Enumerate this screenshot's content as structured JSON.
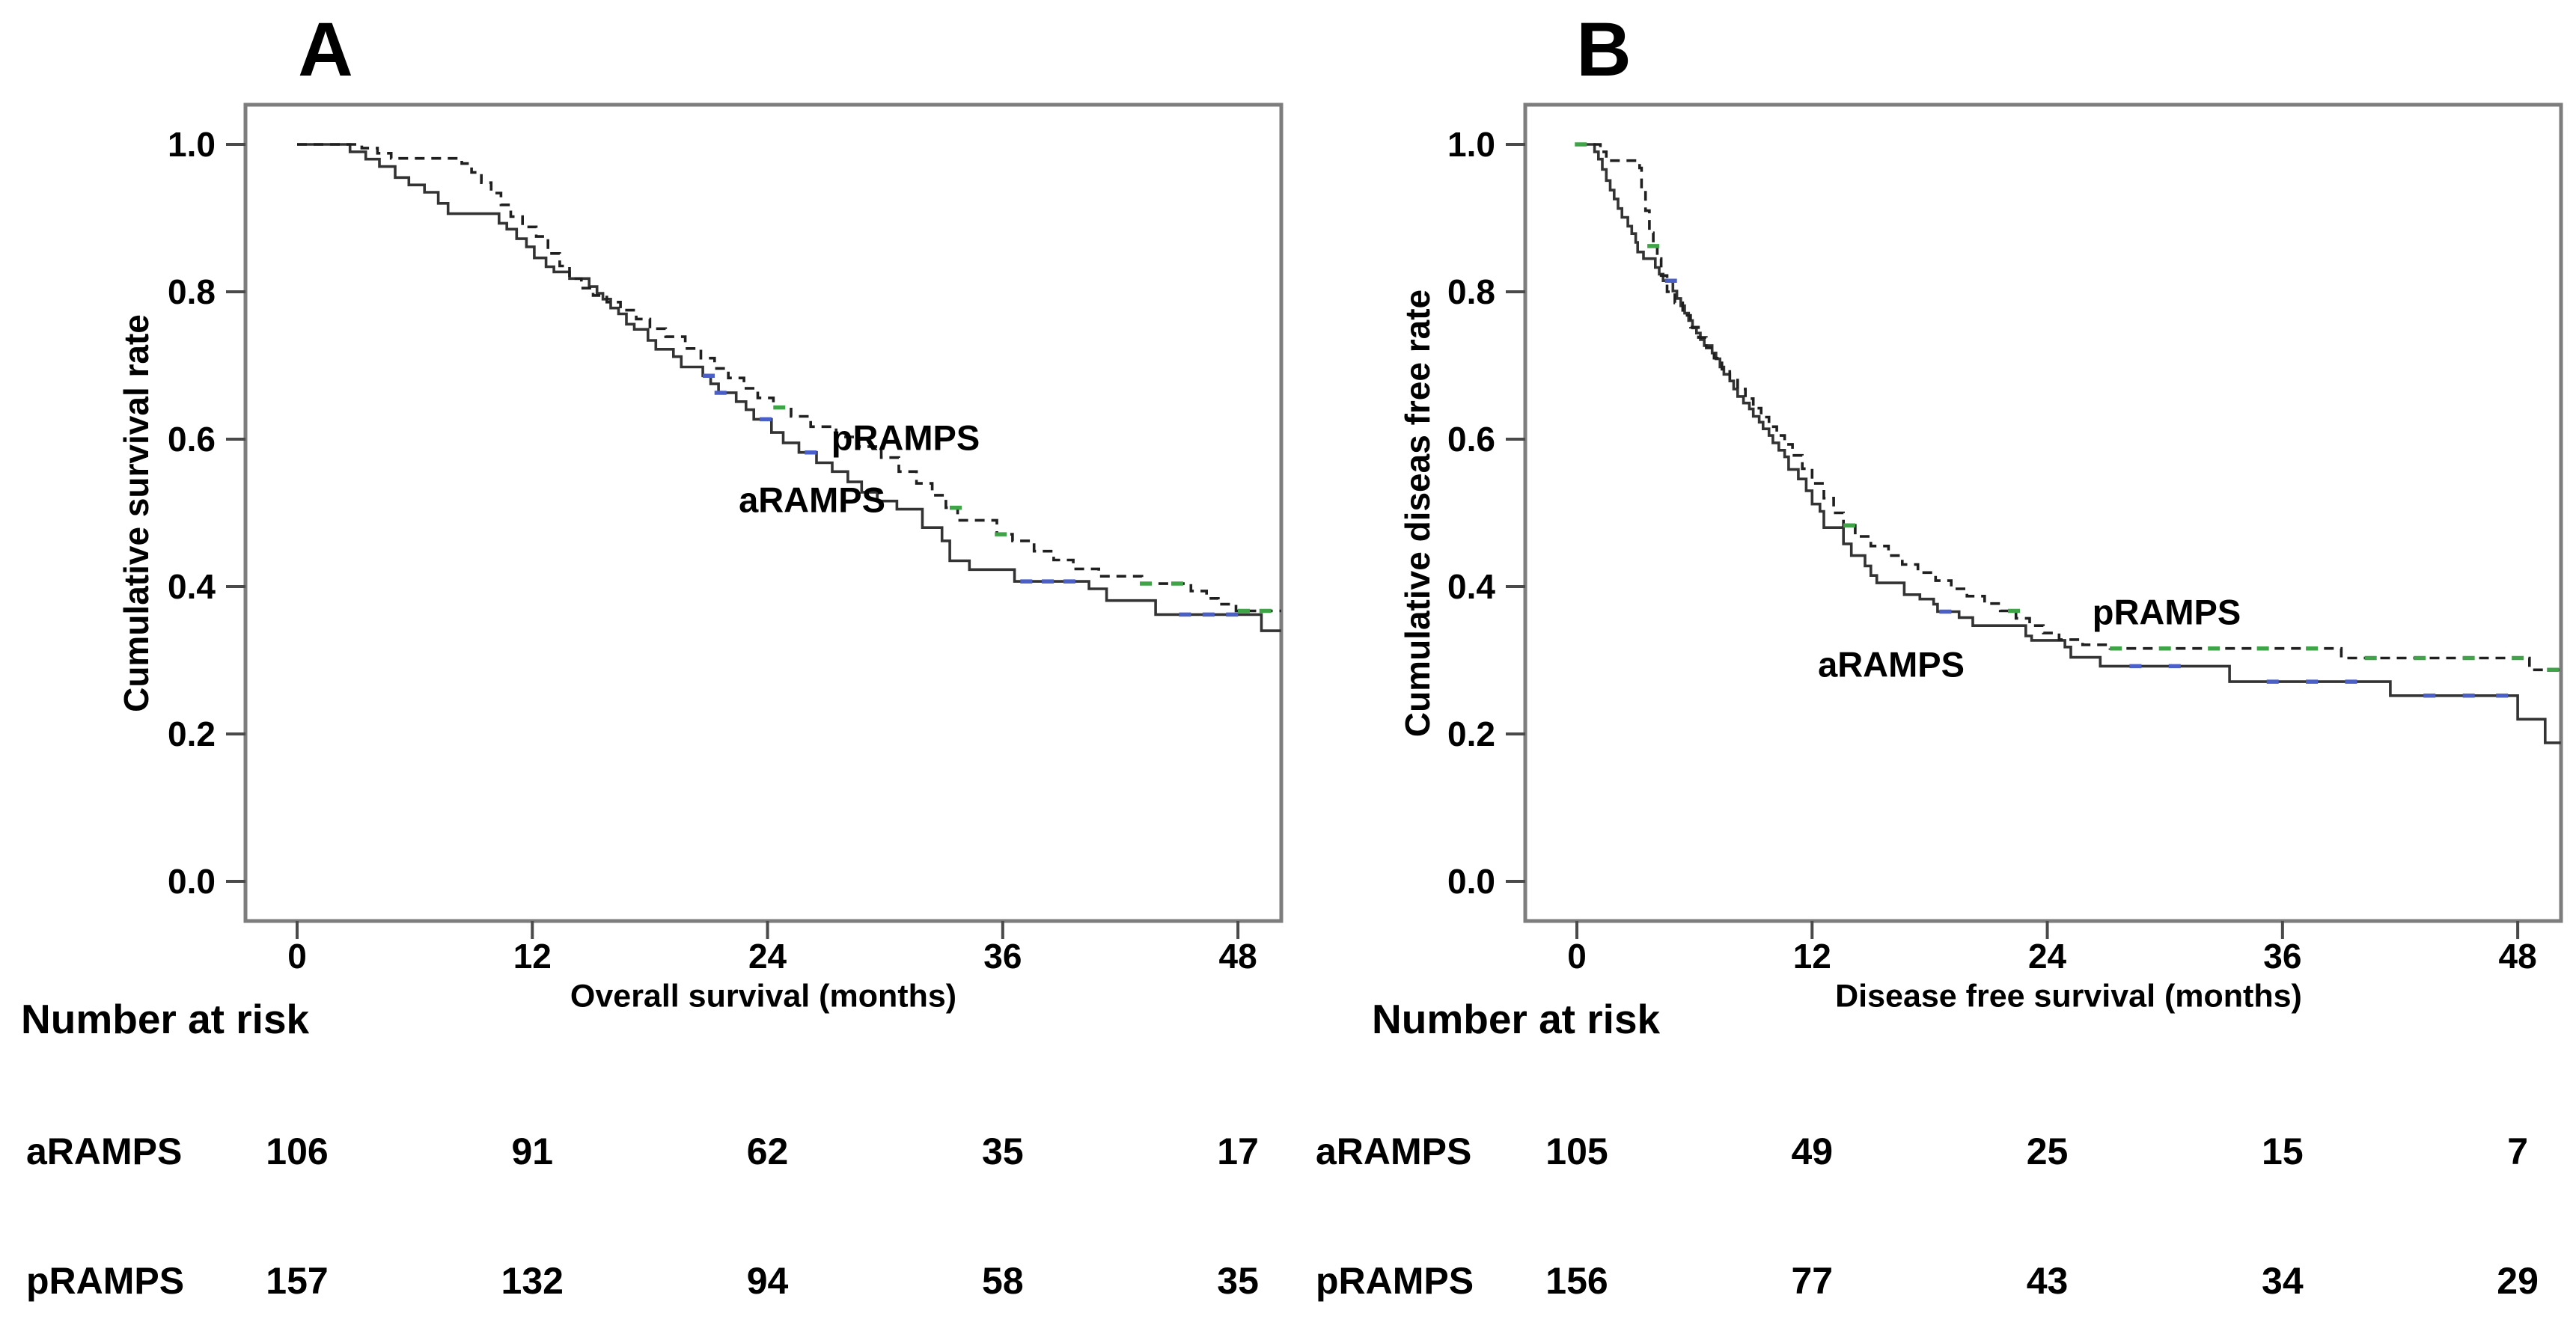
{
  "figure_background": "#ffffff",
  "colors": {
    "frame": "#7d7d7d",
    "tick": "#4a4a4a",
    "text": "#000000",
    "solid_curve": "#333333",
    "dashed_curve": "#1f1f1f",
    "censor_aramps_blue": "#4a5fc8",
    "censor_pramps_green": "#3fa348"
  },
  "chart_data": [
    {
      "type": "line",
      "subtype": "kaplan_meier_step",
      "panel_letter": "A",
      "xlabel": "Overall survival (months)",
      "ylabel": "Cumulative survival rate",
      "x_ticks": [
        0,
        12,
        24,
        36,
        48
      ],
      "y_ticks": [
        1.0,
        0.8,
        0.6,
        0.4,
        0.2,
        0.0
      ],
      "xlim": [
        -2.6,
        50.2
      ],
      "ylim": [
        0.0,
        1.05
      ],
      "grid": false,
      "legend_position": "in-plot-text",
      "series": [
        {
          "name": "aRAMPS",
          "line_style": "solid",
          "censor_mark_color": "#4a5fc8",
          "points": [
            [
              0,
              1.0
            ],
            [
              2.7,
              0.99
            ],
            [
              3.5,
              0.98
            ],
            [
              4.2,
              0.97
            ],
            [
              5.0,
              0.955
            ],
            [
              5.7,
              0.945
            ],
            [
              6.5,
              0.935
            ],
            [
              7.2,
              0.92
            ],
            [
              7.7,
              0.906
            ],
            [
              10.3,
              0.893
            ],
            [
              10.7,
              0.885
            ],
            [
              11.2,
              0.872
            ],
            [
              11.7,
              0.861
            ],
            [
              12.1,
              0.846
            ],
            [
              12.7,
              0.834
            ],
            [
              13.1,
              0.827
            ],
            [
              13.9,
              0.818
            ],
            [
              14.9,
              0.807
            ],
            [
              15.3,
              0.798
            ],
            [
              15.6,
              0.79
            ],
            [
              16.0,
              0.778
            ],
            [
              16.4,
              0.77
            ],
            [
              16.8,
              0.756
            ],
            [
              17.2,
              0.749
            ],
            [
              17.9,
              0.734
            ],
            [
              18.3,
              0.722
            ],
            [
              19.2,
              0.712
            ],
            [
              19.6,
              0.698
            ],
            [
              20.7,
              0.686
            ],
            [
              21.1,
              0.675
            ],
            [
              21.5,
              0.663
            ],
            [
              22.4,
              0.651
            ],
            [
              22.9,
              0.64
            ],
            [
              23.3,
              0.627
            ],
            [
              24.2,
              0.609
            ],
            [
              24.8,
              0.595
            ],
            [
              25.6,
              0.582
            ],
            [
              26.5,
              0.568
            ],
            [
              27.3,
              0.556
            ],
            [
              28.1,
              0.542
            ],
            [
              28.8,
              0.528
            ],
            [
              29.6,
              0.516
            ],
            [
              30.6,
              0.505
            ],
            [
              31.9,
              0.48
            ],
            [
              32.9,
              0.462
            ],
            [
              33.3,
              0.435
            ],
            [
              34.3,
              0.423
            ],
            [
              36.6,
              0.407
            ],
            [
              40.4,
              0.397
            ],
            [
              41.3,
              0.381
            ],
            [
              43.8,
              0.362
            ],
            [
              49.2,
              0.34
            ],
            [
              50.2,
              0.34
            ]
          ],
          "censor_times": [
            21.0,
            21.6,
            23.9,
            26.2,
            37.2,
            38.3,
            39.4,
            45.3,
            46.5,
            47.7
          ]
        },
        {
          "name": "pRAMPS",
          "line_style": "dashed",
          "censor_mark_color": "#3fa348",
          "points": [
            [
              0,
              1.0
            ],
            [
              3.3,
              0.995
            ],
            [
              4.1,
              0.988
            ],
            [
              4.8,
              0.981
            ],
            [
              8.4,
              0.974
            ],
            [
              8.9,
              0.962
            ],
            [
              9.4,
              0.948
            ],
            [
              9.9,
              0.934
            ],
            [
              10.4,
              0.918
            ],
            [
              10.9,
              0.902
            ],
            [
              11.5,
              0.888
            ],
            [
              12.2,
              0.875
            ],
            [
              12.8,
              0.852
            ],
            [
              13.4,
              0.835
            ],
            [
              13.9,
              0.818
            ],
            [
              14.5,
              0.805
            ],
            [
              15.1,
              0.795
            ],
            [
              15.8,
              0.786
            ],
            [
              16.5,
              0.775
            ],
            [
              17.3,
              0.763
            ],
            [
              18.0,
              0.75
            ],
            [
              18.8,
              0.739
            ],
            [
              19.8,
              0.723
            ],
            [
              20.6,
              0.71
            ],
            [
              21.3,
              0.696
            ],
            [
              22.0,
              0.683
            ],
            [
              22.8,
              0.669
            ],
            [
              23.5,
              0.656
            ],
            [
              24.3,
              0.643
            ],
            [
              25.2,
              0.631
            ],
            [
              26.2,
              0.617
            ],
            [
              27.5,
              0.603
            ],
            [
              28.6,
              0.59
            ],
            [
              29.8,
              0.575
            ],
            [
              30.7,
              0.556
            ],
            [
              31.6,
              0.54
            ],
            [
              32.4,
              0.524
            ],
            [
              33.1,
              0.507
            ],
            [
              33.7,
              0.49
            ],
            [
              35.7,
              0.471
            ],
            [
              36.5,
              0.462
            ],
            [
              37.6,
              0.448
            ],
            [
              38.6,
              0.436
            ],
            [
              39.6,
              0.424
            ],
            [
              40.9,
              0.414
            ],
            [
              43.1,
              0.404
            ],
            [
              45.6,
              0.394
            ],
            [
              46.4,
              0.384
            ],
            [
              47.0,
              0.376
            ],
            [
              47.9,
              0.367
            ],
            [
              50.2,
              0.367
            ]
          ],
          "censor_times": [
            24.6,
            33.6,
            35.9,
            43.3,
            44.9,
            48.3,
            49.4
          ]
        }
      ],
      "number_at_risk": {
        "header": "Number at risk",
        "times": [
          0,
          12,
          24,
          36,
          48
        ],
        "rows": [
          {
            "group": "aRAMPS",
            "counts": [
              106,
              91,
              62,
              35,
              17
            ]
          },
          {
            "group": "pRAMPS",
            "counts": [
              157,
              132,
              94,
              58,
              35
            ]
          }
        ]
      }
    },
    {
      "type": "line",
      "subtype": "kaplan_meier_step",
      "panel_letter": "B",
      "xlabel": "Disease free survival (months)",
      "ylabel": "Cumulative diseas free rate",
      "x_ticks": [
        0,
        12,
        24,
        36,
        48
      ],
      "y_ticks": [
        1.0,
        0.8,
        0.6,
        0.4,
        0.2,
        0.0
      ],
      "xlim": [
        -2.6,
        50.2
      ],
      "ylim": [
        0.0,
        1.05
      ],
      "grid": false,
      "legend_position": "in-plot-text",
      "series": [
        {
          "name": "aRAMPS",
          "line_style": "solid",
          "censor_mark_color": "#4a5fc8",
          "points": [
            [
              0,
              1.0
            ],
            [
              0.9,
              0.99
            ],
            [
              1.1,
              0.98
            ],
            [
              1.3,
              0.966
            ],
            [
              1.5,
              0.951
            ],
            [
              1.7,
              0.938
            ],
            [
              1.9,
              0.926
            ],
            [
              2.1,
              0.913
            ],
            [
              2.3,
              0.901
            ],
            [
              2.6,
              0.889
            ],
            [
              2.8,
              0.879
            ],
            [
              3.0,
              0.867
            ],
            [
              3.1,
              0.854
            ],
            [
              3.4,
              0.845
            ],
            [
              4.0,
              0.833
            ],
            [
              4.2,
              0.824
            ],
            [
              4.4,
              0.815
            ],
            [
              4.9,
              0.801
            ],
            [
              5.1,
              0.791
            ],
            [
              5.3,
              0.781
            ],
            [
              5.5,
              0.771
            ],
            [
              5.7,
              0.761
            ],
            [
              5.9,
              0.751
            ],
            [
              6.1,
              0.744
            ],
            [
              6.3,
              0.735
            ],
            [
              6.5,
              0.727
            ],
            [
              6.9,
              0.717
            ],
            [
              7.1,
              0.709
            ],
            [
              7.3,
              0.698
            ],
            [
              7.5,
              0.688
            ],
            [
              7.8,
              0.679
            ],
            [
              8.0,
              0.668
            ],
            [
              8.2,
              0.658
            ],
            [
              8.5,
              0.649
            ],
            [
              8.8,
              0.641
            ],
            [
              9.0,
              0.631
            ],
            [
              9.3,
              0.623
            ],
            [
              9.5,
              0.614
            ],
            [
              9.8,
              0.605
            ],
            [
              10.0,
              0.595
            ],
            [
              10.3,
              0.585
            ],
            [
              10.6,
              0.576
            ],
            [
              10.8,
              0.559
            ],
            [
              11.3,
              0.546
            ],
            [
              11.7,
              0.53
            ],
            [
              12.0,
              0.512
            ],
            [
              12.4,
              0.502
            ],
            [
              12.6,
              0.48
            ],
            [
              13.6,
              0.458
            ],
            [
              14.0,
              0.442
            ],
            [
              14.7,
              0.428
            ],
            [
              15.0,
              0.415
            ],
            [
              15.3,
              0.405
            ],
            [
              16.7,
              0.389
            ],
            [
              17.5,
              0.383
            ],
            [
              18.2,
              0.376
            ],
            [
              18.4,
              0.366
            ],
            [
              19.5,
              0.358
            ],
            [
              20.2,
              0.347
            ],
            [
              22.9,
              0.333
            ],
            [
              23.2,
              0.327
            ],
            [
              24.9,
              0.318
            ],
            [
              25.2,
              0.304
            ],
            [
              26.7,
              0.292
            ],
            [
              33.3,
              0.271
            ],
            [
              41.5,
              0.252
            ],
            [
              48.0,
              0.22
            ],
            [
              49.4,
              0.188
            ],
            [
              50.2,
              0.188
            ]
          ],
          "censor_times": [
            4.8,
            18.8,
            28.5,
            30.5,
            35.5,
            37.5,
            39.5,
            43.5,
            45.5,
            47.2
          ]
        },
        {
          "name": "pRAMPS",
          "line_style": "dashed",
          "censor_mark_color": "#3fa348",
          "points": [
            [
              0,
              1.0
            ],
            [
              1.2,
              0.99
            ],
            [
              1.5,
              0.978
            ],
            [
              3.2,
              0.968
            ],
            [
              3.3,
              0.94
            ],
            [
              3.5,
              0.91
            ],
            [
              3.7,
              0.88
            ],
            [
              3.9,
              0.862
            ],
            [
              4.1,
              0.845
            ],
            [
              4.3,
              0.822
            ],
            [
              4.6,
              0.8
            ],
            [
              5.0,
              0.785
            ],
            [
              5.4,
              0.768
            ],
            [
              5.8,
              0.752
            ],
            [
              6.2,
              0.738
            ],
            [
              6.6,
              0.724
            ],
            [
              7.0,
              0.71
            ],
            [
              7.4,
              0.695
            ],
            [
              7.8,
              0.682
            ],
            [
              8.2,
              0.668
            ],
            [
              8.6,
              0.655
            ],
            [
              9.0,
              0.642
            ],
            [
              9.4,
              0.63
            ],
            [
              9.8,
              0.617
            ],
            [
              10.2,
              0.605
            ],
            [
              10.6,
              0.593
            ],
            [
              11.0,
              0.578
            ],
            [
              11.5,
              0.56
            ],
            [
              12.0,
              0.54
            ],
            [
              12.6,
              0.52
            ],
            [
              13.1,
              0.5
            ],
            [
              13.6,
              0.483
            ],
            [
              14.2,
              0.468
            ],
            [
              15.0,
              0.455
            ],
            [
              15.9,
              0.442
            ],
            [
              16.6,
              0.43
            ],
            [
              17.4,
              0.419
            ],
            [
              18.3,
              0.408
            ],
            [
              19.1,
              0.397
            ],
            [
              19.9,
              0.387
            ],
            [
              20.8,
              0.377
            ],
            [
              21.6,
              0.367
            ],
            [
              22.4,
              0.357
            ],
            [
              23.1,
              0.347
            ],
            [
              23.8,
              0.337
            ],
            [
              24.6,
              0.328
            ],
            [
              25.8,
              0.321
            ],
            [
              27.2,
              0.316
            ],
            [
              39.0,
              0.303
            ],
            [
              48.6,
              0.287
            ],
            [
              50.2,
              0.287
            ]
          ],
          "censor_times": [
            0.2,
            3.9,
            13.9,
            22.3,
            27.5,
            30.0,
            32.5,
            35.0,
            37.5,
            40.5,
            43.0,
            45.5,
            48.0,
            49.8
          ]
        }
      ],
      "number_at_risk": {
        "header": "Number at risk",
        "times": [
          0,
          12,
          24,
          36,
          48
        ],
        "rows": [
          {
            "group": "aRAMPS",
            "counts": [
              105,
              49,
              25,
              15,
              7
            ]
          },
          {
            "group": "pRAMPS",
            "counts": [
              156,
              77,
              43,
              34,
              29
            ]
          }
        ]
      }
    }
  ]
}
